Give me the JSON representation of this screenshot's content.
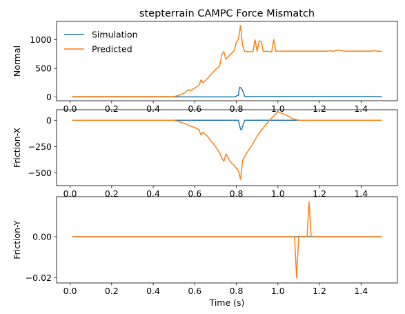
{
  "chart_data": {
    "type": "line",
    "title": "stepterrain CAMPC Force Mismatch",
    "xlabel": "Time (s)",
    "xlim": [
      -0.065,
      1.575
    ],
    "xticks": [
      0.0,
      0.2,
      0.4,
      0.6,
      0.8,
      1.0,
      1.2,
      1.4
    ],
    "xtick_labels": [
      "0.0",
      "0.2",
      "0.4",
      "0.6",
      "0.8",
      "1.0",
      "1.2",
      "1.4"
    ],
    "legend": {
      "placement": "upper-left",
      "frame": false,
      "entries": [
        "Simulation",
        "Predicted"
      ]
    },
    "colors": {
      "Simulation": "#1f77b4",
      "Predicted": "#ff7f0e"
    },
    "subplots": [
      {
        "ylabel": "Normal",
        "ylim": [
          -65,
          1320
        ],
        "yticks": [
          0,
          500,
          1000
        ],
        "ytick_labels": [
          "0",
          "500",
          "1000"
        ],
        "series": [
          {
            "name": "Simulation",
            "x": [
              0.01,
              0.5,
              0.79,
              0.81,
              0.815,
              0.82,
              0.83,
              0.84,
              0.85,
              1.5
            ],
            "y": [
              3,
              3,
              3,
              30,
              170,
              165,
              120,
              12,
              8,
              8
            ]
          },
          {
            "name": "Predicted",
            "x": [
              0.01,
              0.5,
              0.52,
              0.55,
              0.57,
              0.58,
              0.6,
              0.62,
              0.63,
              0.64,
              0.66,
              0.68,
              0.7,
              0.72,
              0.73,
              0.74,
              0.75,
              0.77,
              0.79,
              0.8,
              0.81,
              0.82,
              0.83,
              0.84,
              0.86,
              0.87,
              0.88,
              0.89,
              0.9,
              0.91,
              0.92,
              0.93,
              0.94,
              0.95,
              0.96,
              0.97,
              0.98,
              0.99,
              1.0,
              1.24,
              1.25,
              1.26,
              1.27,
              1.29,
              1.32,
              1.45,
              1.46,
              1.48,
              1.5
            ],
            "y": [
              8,
              8,
              25,
              70,
              130,
              110,
              160,
              200,
              300,
              250,
              320,
              400,
              480,
              540,
              750,
              790,
              660,
              740,
              810,
              960,
              1010,
              1250,
              900,
              800,
              790,
              790,
              800,
              1000,
              800,
              980,
              970,
              790,
              800,
              800,
              790,
              790,
              1000,
              800,
              800,
              800,
              810,
              800,
              800,
              820,
              800,
              800,
              810,
              800,
              795
            ]
          }
        ]
      },
      {
        "ylabel": "Friction-X",
        "ylim": [
          -620,
          100
        ],
        "yticks": [
          0,
          -250,
          -500
        ],
        "ytick_labels": [
          "0",
          "−250",
          "−500"
        ],
        "series": [
          {
            "name": "Simulation",
            "x": [
              0.01,
              0.81,
              0.82,
              0.825,
              0.83,
              0.84,
              1.5
            ],
            "y": [
              0,
              0,
              -85,
              -90,
              -60,
              0,
              0
            ]
          },
          {
            "name": "Predicted",
            "x": [
              0.01,
              0.5,
              0.52,
              0.55,
              0.58,
              0.6,
              0.62,
              0.63,
              0.64,
              0.66,
              0.68,
              0.7,
              0.72,
              0.73,
              0.74,
              0.75,
              0.77,
              0.79,
              0.81,
              0.82,
              0.83,
              0.85,
              0.88,
              0.9,
              0.93,
              0.96,
              1.0,
              1.04,
              1.07,
              1.1,
              1.2,
              1.4,
              1.5
            ],
            "y": [
              0,
              0,
              -10,
              -30,
              -55,
              -70,
              -90,
              -140,
              -115,
              -150,
              -200,
              -250,
              -310,
              -360,
              -390,
              -320,
              -390,
              -430,
              -480,
              -560,
              -380,
              -310,
              -220,
              -150,
              -70,
              0,
              80,
              50,
              15,
              0,
              0,
              0,
              0
            ]
          }
        ]
      },
      {
        "ylabel": "Friction-Y",
        "ylim": [
          -0.0225,
          0.0195
        ],
        "yticks": [
          0.0,
          -0.02
        ],
        "ytick_labels": [
          "0.00",
          "−0.02"
        ],
        "series": [
          {
            "name": "Simulation",
            "x": [
              0.01,
              1.5
            ],
            "y": [
              0,
              0
            ]
          },
          {
            "name": "Predicted",
            "x": [
              0.01,
              1.08,
              1.09,
              1.1,
              1.14,
              1.15,
              1.16,
              1.5
            ],
            "y": [
              0,
              0,
              -0.02,
              0,
              0,
              0.017,
              0,
              0
            ]
          }
        ]
      }
    ]
  }
}
